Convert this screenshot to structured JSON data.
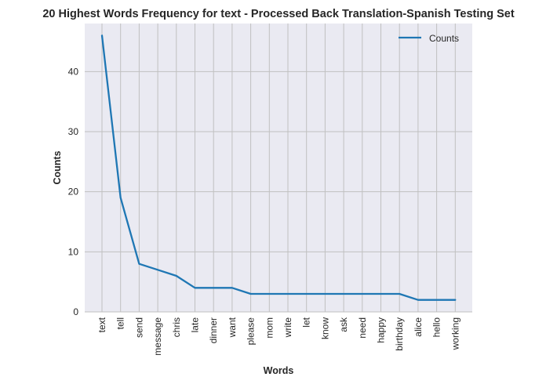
{
  "chart_data": {
    "type": "line",
    "title": "20 Highest Words Frequency for text - Processed Back Translation-Spanish Testing Set",
    "xlabel": "Words",
    "ylabel": "Counts",
    "categories": [
      "text",
      "tell",
      "send",
      "message",
      "chris",
      "late",
      "dinner",
      "want",
      "please",
      "mom",
      "write",
      "let",
      "know",
      "ask",
      "need",
      "happy",
      "birthday",
      "alice",
      "hello",
      "working"
    ],
    "series": [
      {
        "name": "Counts",
        "values": [
          46,
          19,
          8,
          7,
          6,
          4,
          4,
          4,
          3,
          3,
          3,
          3,
          3,
          3,
          3,
          3,
          3,
          2,
          2,
          2
        ]
      }
    ],
    "ylim": [
      0,
      48
    ],
    "yticks": [
      0,
      10,
      20,
      30,
      40
    ],
    "grid": true,
    "legend_position": "upper-right",
    "colors": {
      "line": "#1f77b4",
      "plot_background": "#eaeaf2",
      "grid": "#c0c0c0"
    }
  }
}
